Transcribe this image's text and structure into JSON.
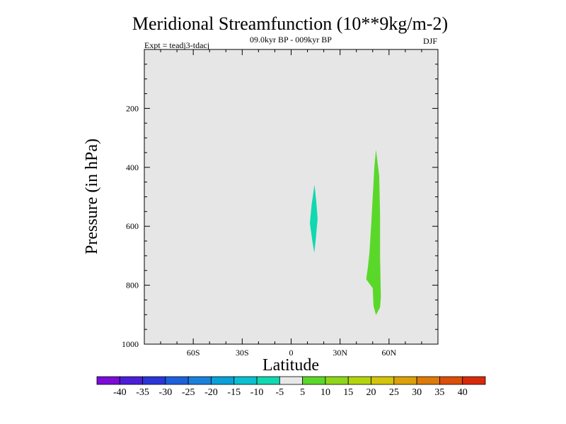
{
  "chart_data": {
    "type": "heatmap",
    "title": "Meridional Streamfunction (10**9kg/m-2)",
    "subtitle": "09.0kyr BP - 009kyr BP",
    "left_label": "Expt = teadj3-tdacj",
    "right_label": "DJF",
    "xlabel": "Latitude",
    "ylabel": "Pressure (in hPa)",
    "xlim": [
      -90,
      90
    ],
    "ylim": [
      0,
      1000
    ],
    "x_ticks": [
      {
        "value": -60,
        "label": "60S"
      },
      {
        "value": -30,
        "label": "30S"
      },
      {
        "value": 0,
        "label": "0"
      },
      {
        "value": 30,
        "label": "30N"
      },
      {
        "value": 60,
        "label": "60N"
      }
    ],
    "y_ticks": [
      {
        "value": 200,
        "label": "200"
      },
      {
        "value": 400,
        "label": "400"
      },
      {
        "value": 600,
        "label": "600"
      },
      {
        "value": 800,
        "label": "800"
      },
      {
        "value": 1000,
        "label": "1000"
      }
    ],
    "background_color": "#e6e6e6",
    "colorbar": {
      "levels": [
        -40,
        -35,
        -30,
        -25,
        -20,
        -15,
        -10,
        -5,
        5,
        10,
        15,
        20,
        25,
        30,
        35,
        40
      ],
      "colors": [
        "#7c0ad8",
        "#4b1ed8",
        "#2a36d8",
        "#1e60dc",
        "#1a80dc",
        "#0aa0d8",
        "#0ac0d0",
        "#10d8b0",
        "#e8e8e8",
        "#5ad82a",
        "#8ed61a",
        "#b4d40a",
        "#d4c40a",
        "#dca00a",
        "#dc7a0a",
        "#dc4e0a",
        "#d82a0a"
      ]
    },
    "regions": [
      {
        "name": "negative-cell-15n",
        "value_range": "-10 to -5",
        "color": "#10d8b0",
        "outline": [
          [
            14.3,
            459
          ],
          [
            15.5,
            520
          ],
          [
            16.2,
            575
          ],
          [
            15.2,
            640
          ],
          [
            14.2,
            690
          ],
          [
            13,
            650
          ],
          [
            11.5,
            590
          ],
          [
            12.5,
            530
          ]
        ]
      },
      {
        "name": "positive-cell-52n",
        "value_range": "5 to 10",
        "color": "#5ad82a",
        "outline": [
          [
            52,
            340
          ],
          [
            54,
            430
          ],
          [
            54.5,
            560
          ],
          [
            54.5,
            700
          ],
          [
            55,
            840
          ],
          [
            54.5,
            875
          ],
          [
            52,
            901
          ],
          [
            50.5,
            870
          ],
          [
            50,
            810
          ],
          [
            46,
            780
          ],
          [
            47,
            740
          ],
          [
            48,
            690
          ],
          [
            49,
            600
          ],
          [
            50,
            500
          ],
          [
            51,
            400
          ]
        ]
      }
    ]
  }
}
